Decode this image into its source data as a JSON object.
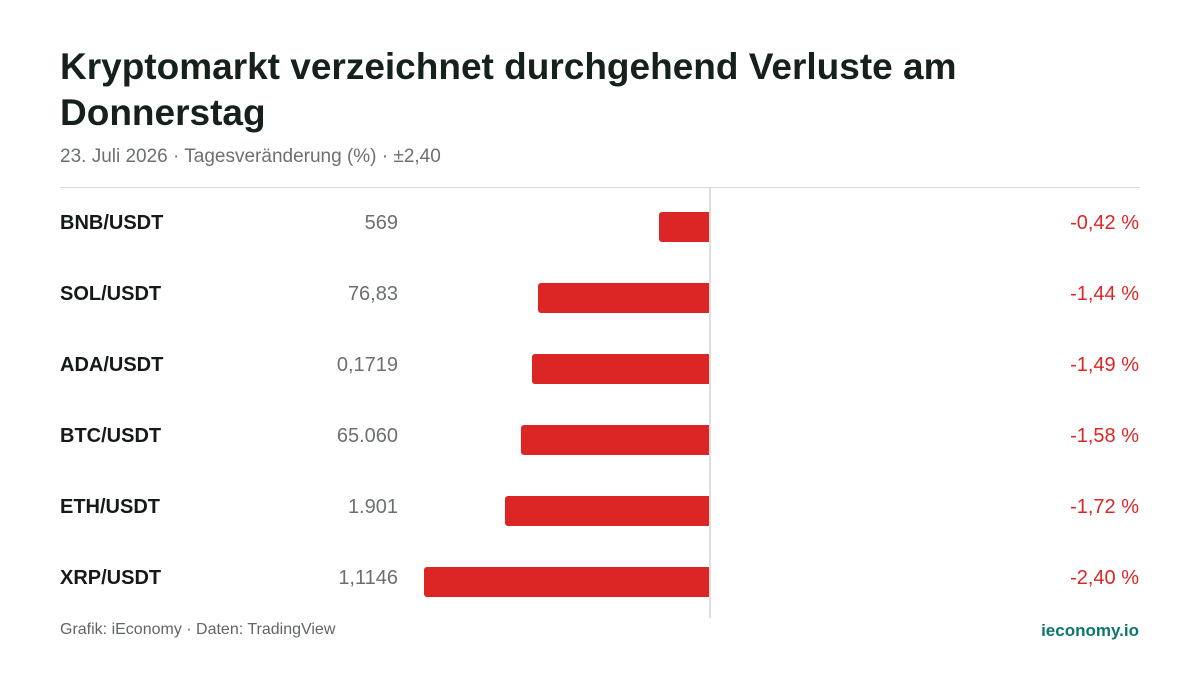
{
  "title": "Kryptomarkt verzeichnet durchgehend Verluste am Donnerstag",
  "subtitle": "23. Juli 2026 · Tagesveränderung (%) · ±2,40",
  "footer": {
    "source": "Grafik: iEconomy · Daten: TradingView",
    "brand": "ieconomy.io"
  },
  "colors": {
    "negative": "#dc2626",
    "brand": "#0f766e"
  },
  "chart_data": {
    "type": "bar",
    "orientation": "horizontal",
    "title": "Kryptomarkt verzeichnet durchgehend Verluste am Donnerstag",
    "subtitle": "23. Juli 2026 · Tagesveränderung (%) · ±2,40",
    "xlim": [
      -2.4,
      2.4
    ],
    "categories": [
      "BNB/USDT",
      "SOL/USDT",
      "ADA/USDT",
      "BTC/USDT",
      "ETH/USDT",
      "XRP/USDT"
    ],
    "prices": [
      "569",
      "76,83",
      "0,1719",
      "65.060",
      "1.901",
      "1,1146"
    ],
    "values": [
      -0.42,
      -1.44,
      -1.49,
      -1.58,
      -1.72,
      -2.4
    ],
    "value_labels": [
      "-0,42 %",
      "-1,44 %",
      "-1,49 %",
      "-1,58 %",
      "-1,72 %",
      "-2,40 %"
    ]
  }
}
